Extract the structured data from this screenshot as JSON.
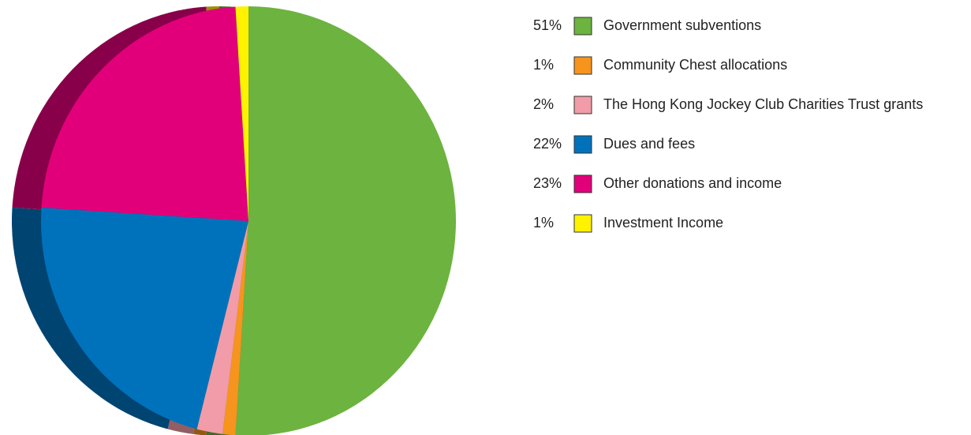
{
  "chart_data": {
    "type": "pie",
    "categories": [
      "Government subventions",
      "Community Chest allocations",
      "The Hong Kong Jockey Club Charities Trust grants",
      "Dues and fees",
      "Other donations and income",
      "Investment Income"
    ],
    "values": [
      51,
      1,
      2,
      22,
      23,
      1
    ],
    "value_labels": [
      "51%",
      "1%",
      "2%",
      "22%",
      "23%",
      "1%"
    ],
    "colors": [
      "#6db33f",
      "#f7941d",
      "#f19ca8",
      "#0072bc",
      "#e2007a",
      "#fff200"
    ]
  }
}
